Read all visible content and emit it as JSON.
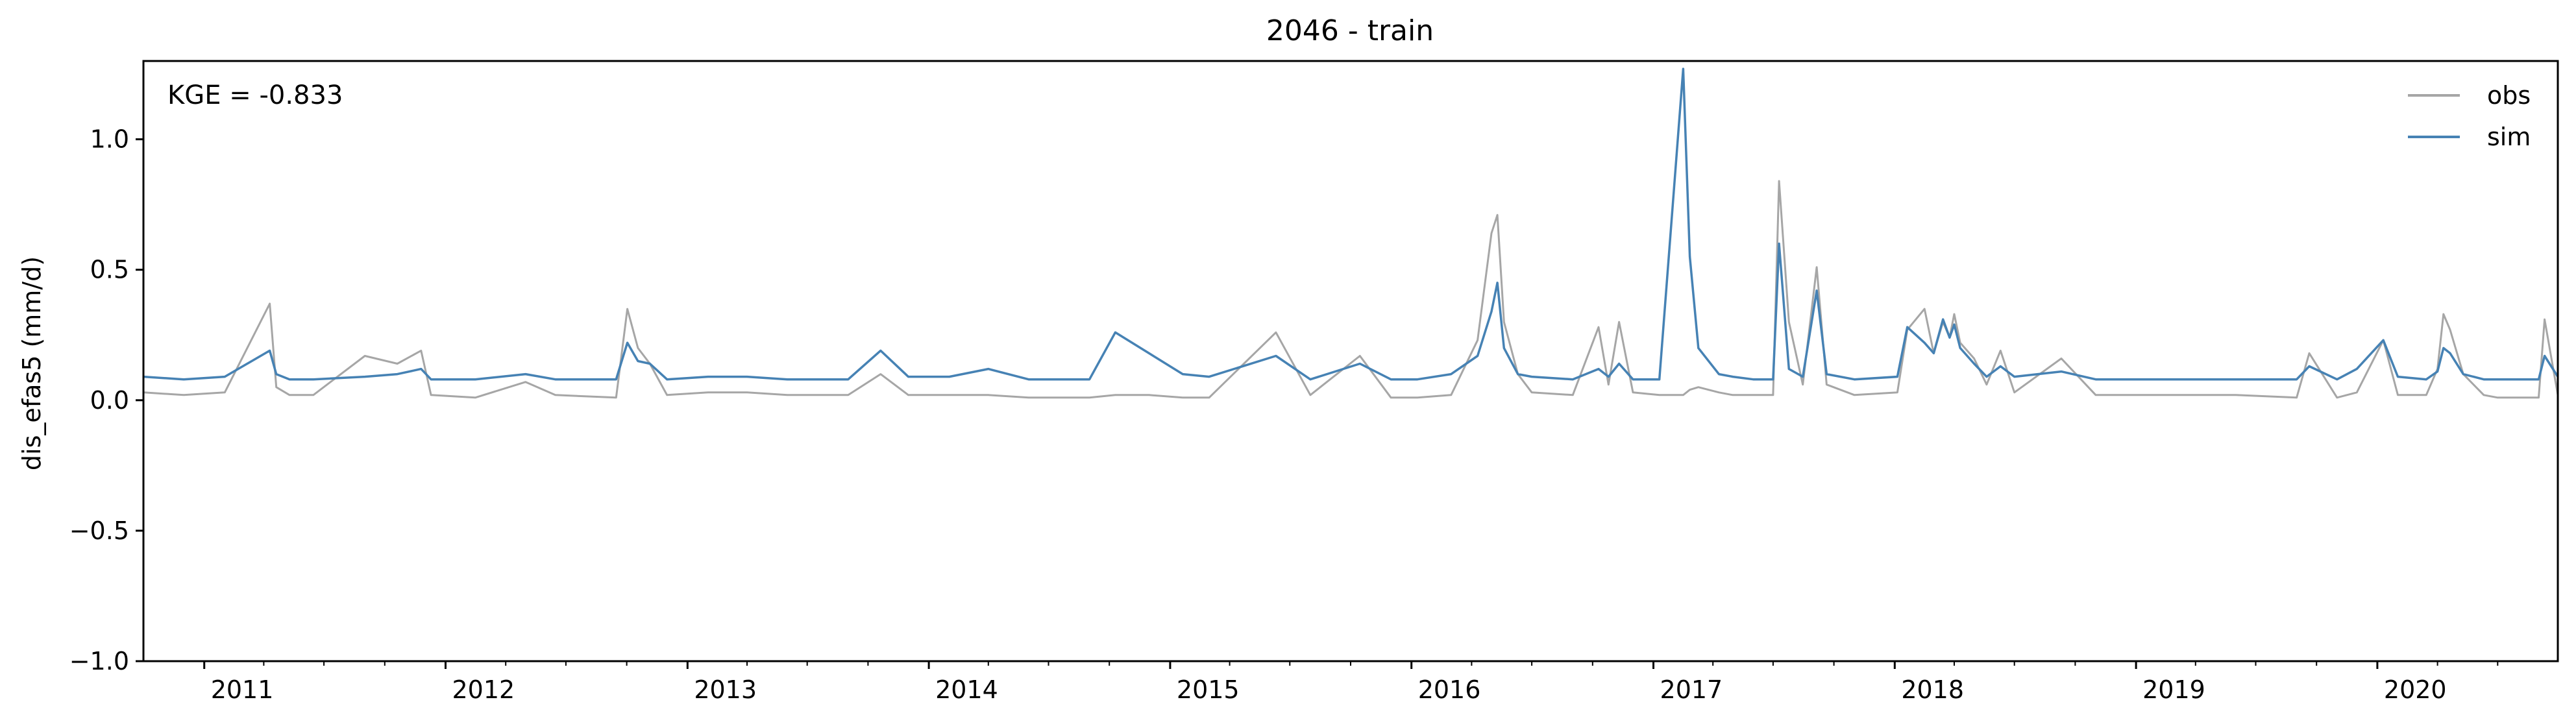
{
  "chart_data": {
    "type": "line",
    "title": "2046 - train",
    "xlabel": "",
    "ylabel": "dis_efas5 (mm/d)",
    "annotation": "KGE = -0.833",
    "ylim": [
      -1.0,
      1.3
    ],
    "xlim": [
      "2010-10-01",
      "2020-09-30"
    ],
    "yticks": [
      -1.0,
      -0.5,
      0.0,
      0.5,
      1.0
    ],
    "ytick_labels": [
      "−1.0",
      "−0.5",
      "0.0",
      "0.5",
      "1.0"
    ],
    "xticks": [
      "2011-01-01",
      "2012-01-01",
      "2013-01-01",
      "2014-01-01",
      "2015-01-01",
      "2016-01-01",
      "2017-01-01",
      "2018-01-01",
      "2019-01-01",
      "2020-01-01"
    ],
    "xtick_labels": [
      "2011",
      "2012",
      "2013",
      "2014",
      "2015",
      "2016",
      "2017",
      "2018",
      "2019",
      "2020"
    ],
    "grid": false,
    "legend_position": "top-right",
    "series": [
      {
        "name": "obs",
        "color": "#a6a6a6",
        "x": [
          "2010-10-01",
          "2010-12-01",
          "2011-02-01",
          "2011-04-10",
          "2011-04-20",
          "2011-05-10",
          "2011-06-15",
          "2011-09-01",
          "2011-10-20",
          "2011-11-25",
          "2011-12-10",
          "2012-02-15",
          "2012-05-01",
          "2012-06-15",
          "2012-09-15",
          "2012-10-02",
          "2012-10-18",
          "2012-11-05",
          "2012-12-01",
          "2013-02-01",
          "2013-04-01",
          "2013-06-01",
          "2013-09-01",
          "2013-10-20",
          "2013-12-01",
          "2014-02-01",
          "2014-04-01",
          "2014-06-01",
          "2014-09-01",
          "2014-10-10",
          "2014-11-30",
          "2015-01-20",
          "2015-03-01",
          "2015-06-10",
          "2015-08-01",
          "2015-10-15",
          "2015-12-01",
          "2016-01-10",
          "2016-03-01",
          "2016-04-10",
          "2016-05-01",
          "2016-05-10",
          "2016-05-20",
          "2016-06-10",
          "2016-07-01",
          "2016-09-01",
          "2016-10-10",
          "2016-10-25",
          "2016-11-10",
          "2016-12-01",
          "2017-01-10",
          "2017-02-15",
          "2017-02-25",
          "2017-03-10",
          "2017-04-10",
          "2017-05-01",
          "2017-06-01",
          "2017-07-01",
          "2017-07-10",
          "2017-07-25",
          "2017-08-15",
          "2017-09-05",
          "2017-09-20",
          "2017-11-01",
          "2018-01-05",
          "2018-01-20",
          "2018-02-15",
          "2018-03-01",
          "2018-03-15",
          "2018-03-25",
          "2018-04-01",
          "2018-04-10",
          "2018-05-01",
          "2018-05-20",
          "2018-06-10",
          "2018-07-01",
          "2018-09-10",
          "2018-11-01",
          "2019-01-01",
          "2019-04-01",
          "2019-06-01",
          "2019-09-01",
          "2019-09-20",
          "2019-11-01",
          "2019-12-01",
          "2020-01-10",
          "2020-02-01",
          "2020-03-15",
          "2020-04-01",
          "2020-04-10",
          "2020-04-20",
          "2020-05-10",
          "2020-06-10",
          "2020-07-01",
          "2020-09-01",
          "2020-09-10",
          "2020-09-30"
        ],
        "values": [
          0.03,
          0.02,
          0.03,
          0.37,
          0.05,
          0.02,
          0.02,
          0.17,
          0.14,
          0.19,
          0.02,
          0.01,
          0.07,
          0.02,
          0.01,
          0.35,
          0.2,
          0.14,
          0.02,
          0.03,
          0.03,
          0.02,
          0.02,
          0.1,
          0.02,
          0.02,
          0.02,
          0.01,
          0.01,
          0.02,
          0.02,
          0.01,
          0.01,
          0.26,
          0.02,
          0.17,
          0.01,
          0.01,
          0.02,
          0.23,
          0.64,
          0.71,
          0.3,
          0.1,
          0.03,
          0.02,
          0.28,
          0.06,
          0.3,
          0.03,
          0.02,
          0.02,
          0.04,
          0.05,
          0.03,
          0.02,
          0.02,
          0.02,
          0.84,
          0.3,
          0.06,
          0.51,
          0.06,
          0.02,
          0.03,
          0.27,
          0.35,
          0.18,
          0.3,
          0.24,
          0.33,
          0.22,
          0.16,
          0.06,
          0.19,
          0.03,
          0.16,
          0.02,
          0.02,
          0.02,
          0.02,
          0.01,
          0.18,
          0.01,
          0.03,
          0.23,
          0.02,
          0.02,
          0.12,
          0.33,
          0.27,
          0.1,
          0.02,
          0.01,
          0.01,
          0.31,
          0.02
        ]
      },
      {
        "name": "sim",
        "color": "#4682b4",
        "x": [
          "2010-10-01",
          "2010-12-01",
          "2011-02-01",
          "2011-04-10",
          "2011-04-20",
          "2011-05-10",
          "2011-06-15",
          "2011-09-01",
          "2011-10-20",
          "2011-11-25",
          "2011-12-10",
          "2012-02-15",
          "2012-05-01",
          "2012-06-15",
          "2012-09-15",
          "2012-10-02",
          "2012-10-18",
          "2012-11-05",
          "2012-12-01",
          "2013-02-01",
          "2013-04-01",
          "2013-06-01",
          "2013-09-01",
          "2013-10-20",
          "2013-12-01",
          "2014-02-01",
          "2014-04-01",
          "2014-06-01",
          "2014-09-01",
          "2014-10-10",
          "2014-11-30",
          "2015-01-20",
          "2015-03-01",
          "2015-06-10",
          "2015-08-01",
          "2015-10-15",
          "2015-12-01",
          "2016-01-10",
          "2016-03-01",
          "2016-04-10",
          "2016-05-01",
          "2016-05-10",
          "2016-05-20",
          "2016-06-10",
          "2016-07-01",
          "2016-09-01",
          "2016-10-10",
          "2016-10-25",
          "2016-11-10",
          "2016-12-01",
          "2017-01-10",
          "2017-02-15",
          "2017-02-25",
          "2017-03-10",
          "2017-04-10",
          "2017-05-01",
          "2017-06-01",
          "2017-07-01",
          "2017-07-10",
          "2017-07-25",
          "2017-08-15",
          "2017-09-05",
          "2017-09-20",
          "2017-11-01",
          "2018-01-05",
          "2018-01-20",
          "2018-02-15",
          "2018-03-01",
          "2018-03-15",
          "2018-03-25",
          "2018-04-01",
          "2018-04-10",
          "2018-05-01",
          "2018-05-20",
          "2018-06-10",
          "2018-07-01",
          "2018-09-10",
          "2018-11-01",
          "2019-01-01",
          "2019-04-01",
          "2019-06-01",
          "2019-09-01",
          "2019-09-20",
          "2019-11-01",
          "2019-12-01",
          "2020-01-10",
          "2020-02-01",
          "2020-03-15",
          "2020-04-01",
          "2020-04-10",
          "2020-04-20",
          "2020-05-10",
          "2020-06-10",
          "2020-07-01",
          "2020-09-01",
          "2020-09-10",
          "2020-09-30"
        ],
        "values": [
          0.09,
          0.08,
          0.09,
          0.19,
          0.1,
          0.08,
          0.08,
          0.09,
          0.1,
          0.12,
          0.08,
          0.08,
          0.1,
          0.08,
          0.08,
          0.22,
          0.15,
          0.14,
          0.08,
          0.09,
          0.09,
          0.08,
          0.08,
          0.19,
          0.09,
          0.09,
          0.12,
          0.08,
          0.08,
          0.26,
          0.18,
          0.1,
          0.09,
          0.17,
          0.08,
          0.14,
          0.08,
          0.08,
          0.1,
          0.17,
          0.34,
          0.45,
          0.2,
          0.1,
          0.09,
          0.08,
          0.12,
          0.09,
          0.14,
          0.08,
          0.08,
          1.27,
          0.55,
          0.2,
          0.1,
          0.09,
          0.08,
          0.08,
          0.6,
          0.12,
          0.09,
          0.42,
          0.1,
          0.08,
          0.09,
          0.28,
          0.22,
          0.18,
          0.31,
          0.24,
          0.29,
          0.2,
          0.14,
          0.09,
          0.13,
          0.09,
          0.11,
          0.08,
          0.08,
          0.08,
          0.08,
          0.08,
          0.13,
          0.08,
          0.12,
          0.23,
          0.09,
          0.08,
          0.11,
          0.2,
          0.18,
          0.1,
          0.08,
          0.08,
          0.08,
          0.17,
          0.09
        ]
      }
    ]
  }
}
